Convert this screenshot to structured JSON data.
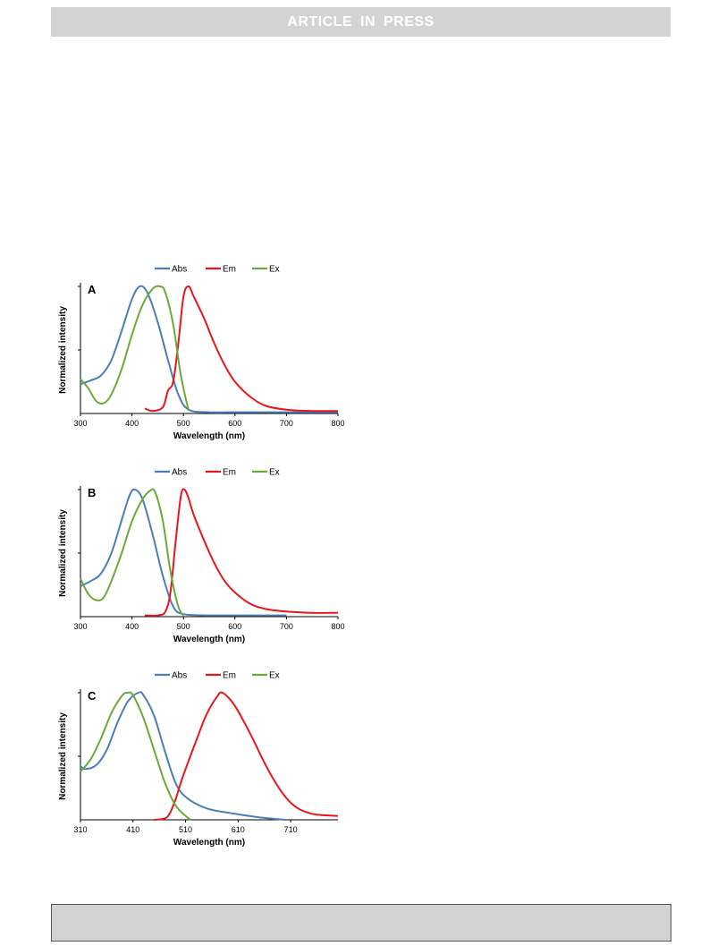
{
  "header": {
    "text": "ARTICLE IN PRESS"
  },
  "colors": {
    "abs": "#4a7ebb",
    "em": "#e8161b",
    "ex": "#6aaa3a",
    "header_bg": "#d3d3d3"
  },
  "chart_data": [
    {
      "type": "line",
      "panel_label": "A",
      "xlabel": "Wavelength (nm)",
      "ylabel": "Normalized intensity",
      "xlim": [
        300,
        800
      ],
      "ylim": [
        0,
        1
      ],
      "xticks": [
        300,
        400,
        500,
        600,
        700,
        800
      ],
      "legend": "top",
      "series": [
        {
          "name": "Abs",
          "x": [
            300,
            320,
            340,
            360,
            380,
            400,
            415,
            430,
            450,
            470,
            490,
            510,
            550,
            600,
            700,
            800
          ],
          "y": [
            0.23,
            0.26,
            0.3,
            0.42,
            0.65,
            0.9,
            1.0,
            0.95,
            0.72,
            0.42,
            0.15,
            0.03,
            0.01,
            0.01,
            0.01,
            0.01
          ]
        },
        {
          "name": "Em",
          "x": [
            425,
            440,
            460,
            470,
            480,
            490,
            500,
            510,
            520,
            540,
            560,
            580,
            600,
            630,
            660,
            700,
            750,
            800
          ],
          "y": [
            0.04,
            0.02,
            0.05,
            0.18,
            0.25,
            0.55,
            0.92,
            1.0,
            0.92,
            0.75,
            0.55,
            0.38,
            0.25,
            0.13,
            0.06,
            0.03,
            0.02,
            0.02
          ]
        },
        {
          "name": "Ex",
          "x": [
            300,
            315,
            330,
            345,
            360,
            380,
            400,
            420,
            440,
            455,
            465,
            480,
            495,
            510
          ],
          "y": [
            0.27,
            0.2,
            0.1,
            0.08,
            0.15,
            0.35,
            0.62,
            0.85,
            0.98,
            1.0,
            0.95,
            0.7,
            0.3,
            0.02
          ]
        }
      ]
    },
    {
      "type": "line",
      "panel_label": "B",
      "xlabel": "Wavelength (nm)",
      "ylabel": "Normalized intensity",
      "xlim": [
        300,
        800
      ],
      "ylim": [
        0,
        1
      ],
      "xticks": [
        300,
        400,
        500,
        600,
        700,
        800
      ],
      "legend": "top",
      "series": [
        {
          "name": "Abs",
          "x": [
            300,
            320,
            340,
            360,
            380,
            395,
            405,
            420,
            440,
            460,
            480,
            500,
            550,
            600,
            700
          ],
          "y": [
            0.24,
            0.28,
            0.34,
            0.5,
            0.76,
            0.95,
            1.0,
            0.93,
            0.65,
            0.32,
            0.08,
            0.02,
            0.01,
            0.01,
            0.01
          ]
        },
        {
          "name": "Em",
          "x": [
            425,
            450,
            465,
            475,
            485,
            495,
            502,
            510,
            520,
            540,
            560,
            580,
            600,
            630,
            660,
            700,
            750,
            800
          ],
          "y": [
            0.01,
            0.01,
            0.04,
            0.2,
            0.6,
            0.95,
            1.0,
            0.93,
            0.8,
            0.6,
            0.42,
            0.28,
            0.19,
            0.1,
            0.06,
            0.04,
            0.03,
            0.03
          ]
        },
        {
          "name": "Ex",
          "x": [
            300,
            315,
            330,
            345,
            360,
            380,
            400,
            420,
            435,
            445,
            460,
            475,
            490,
            500
          ],
          "y": [
            0.3,
            0.18,
            0.13,
            0.15,
            0.28,
            0.5,
            0.75,
            0.92,
            0.99,
            0.98,
            0.75,
            0.35,
            0.08,
            0.01
          ]
        }
      ]
    },
    {
      "type": "line",
      "panel_label": "C",
      "xlabel": "Wavelength (nm)",
      "ylabel": "Normalized intensity",
      "xlim": [
        310,
        800
      ],
      "ylim": [
        0,
        1
      ],
      "xticks": [
        310,
        410,
        510,
        610,
        710
      ],
      "legend": "top",
      "series": [
        {
          "name": "Abs",
          "x": [
            310,
            320,
            340,
            360,
            380,
            400,
            420,
            430,
            450,
            470,
            490,
            510,
            550,
            600,
            650,
            700
          ],
          "y": [
            0.42,
            0.4,
            0.43,
            0.55,
            0.76,
            0.93,
            1.0,
            0.98,
            0.82,
            0.55,
            0.3,
            0.18,
            0.09,
            0.05,
            0.02,
            0.0
          ]
        },
        {
          "name": "Em",
          "x": [
            450,
            470,
            480,
            490,
            500,
            510,
            530,
            550,
            570,
            580,
            600,
            620,
            640,
            660,
            680,
            700,
            720,
            740,
            760,
            800
          ],
          "y": [
            0.0,
            0.01,
            0.05,
            0.15,
            0.28,
            0.4,
            0.62,
            0.83,
            0.97,
            1.0,
            0.92,
            0.78,
            0.62,
            0.45,
            0.3,
            0.18,
            0.1,
            0.06,
            0.04,
            0.03
          ]
        },
        {
          "name": "Ex",
          "x": [
            310,
            330,
            350,
            370,
            390,
            400,
            410,
            430,
            450,
            470,
            490,
            510,
            520
          ],
          "y": [
            0.38,
            0.48,
            0.65,
            0.85,
            0.98,
            1.0,
            0.98,
            0.8,
            0.55,
            0.3,
            0.12,
            0.03,
            0.0
          ]
        }
      ]
    }
  ]
}
